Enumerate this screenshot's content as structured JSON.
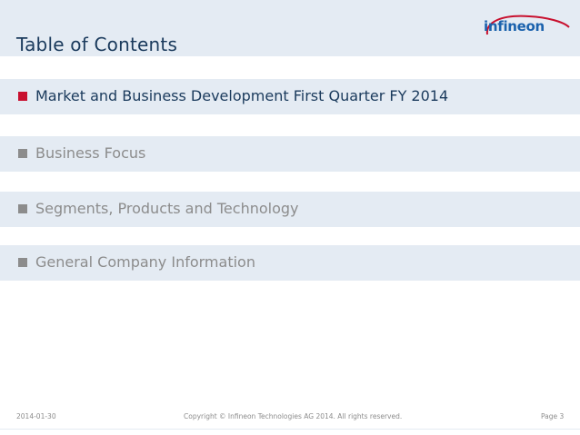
{
  "header": {
    "title": "Table of Contents",
    "logo_text": "infineon"
  },
  "colors": {
    "band": "#e4ebf3",
    "active_bullet": "#c8102e",
    "inactive_bullet": "#8c8c8c",
    "title": "#1a3a5c",
    "logo": "#1b62ad"
  },
  "items": [
    {
      "label": "Market and Business Development First Quarter FY 2014",
      "active": true
    },
    {
      "label": "Business Focus",
      "active": false
    },
    {
      "label": "Segments, Products and Technology",
      "active": false
    },
    {
      "label": "General Company Information",
      "active": false
    }
  ],
  "footer": {
    "date": "2014-01-30",
    "copyright": "Copyright © Infineon Technologies AG 2014. All rights reserved.",
    "page": "Page 3"
  }
}
